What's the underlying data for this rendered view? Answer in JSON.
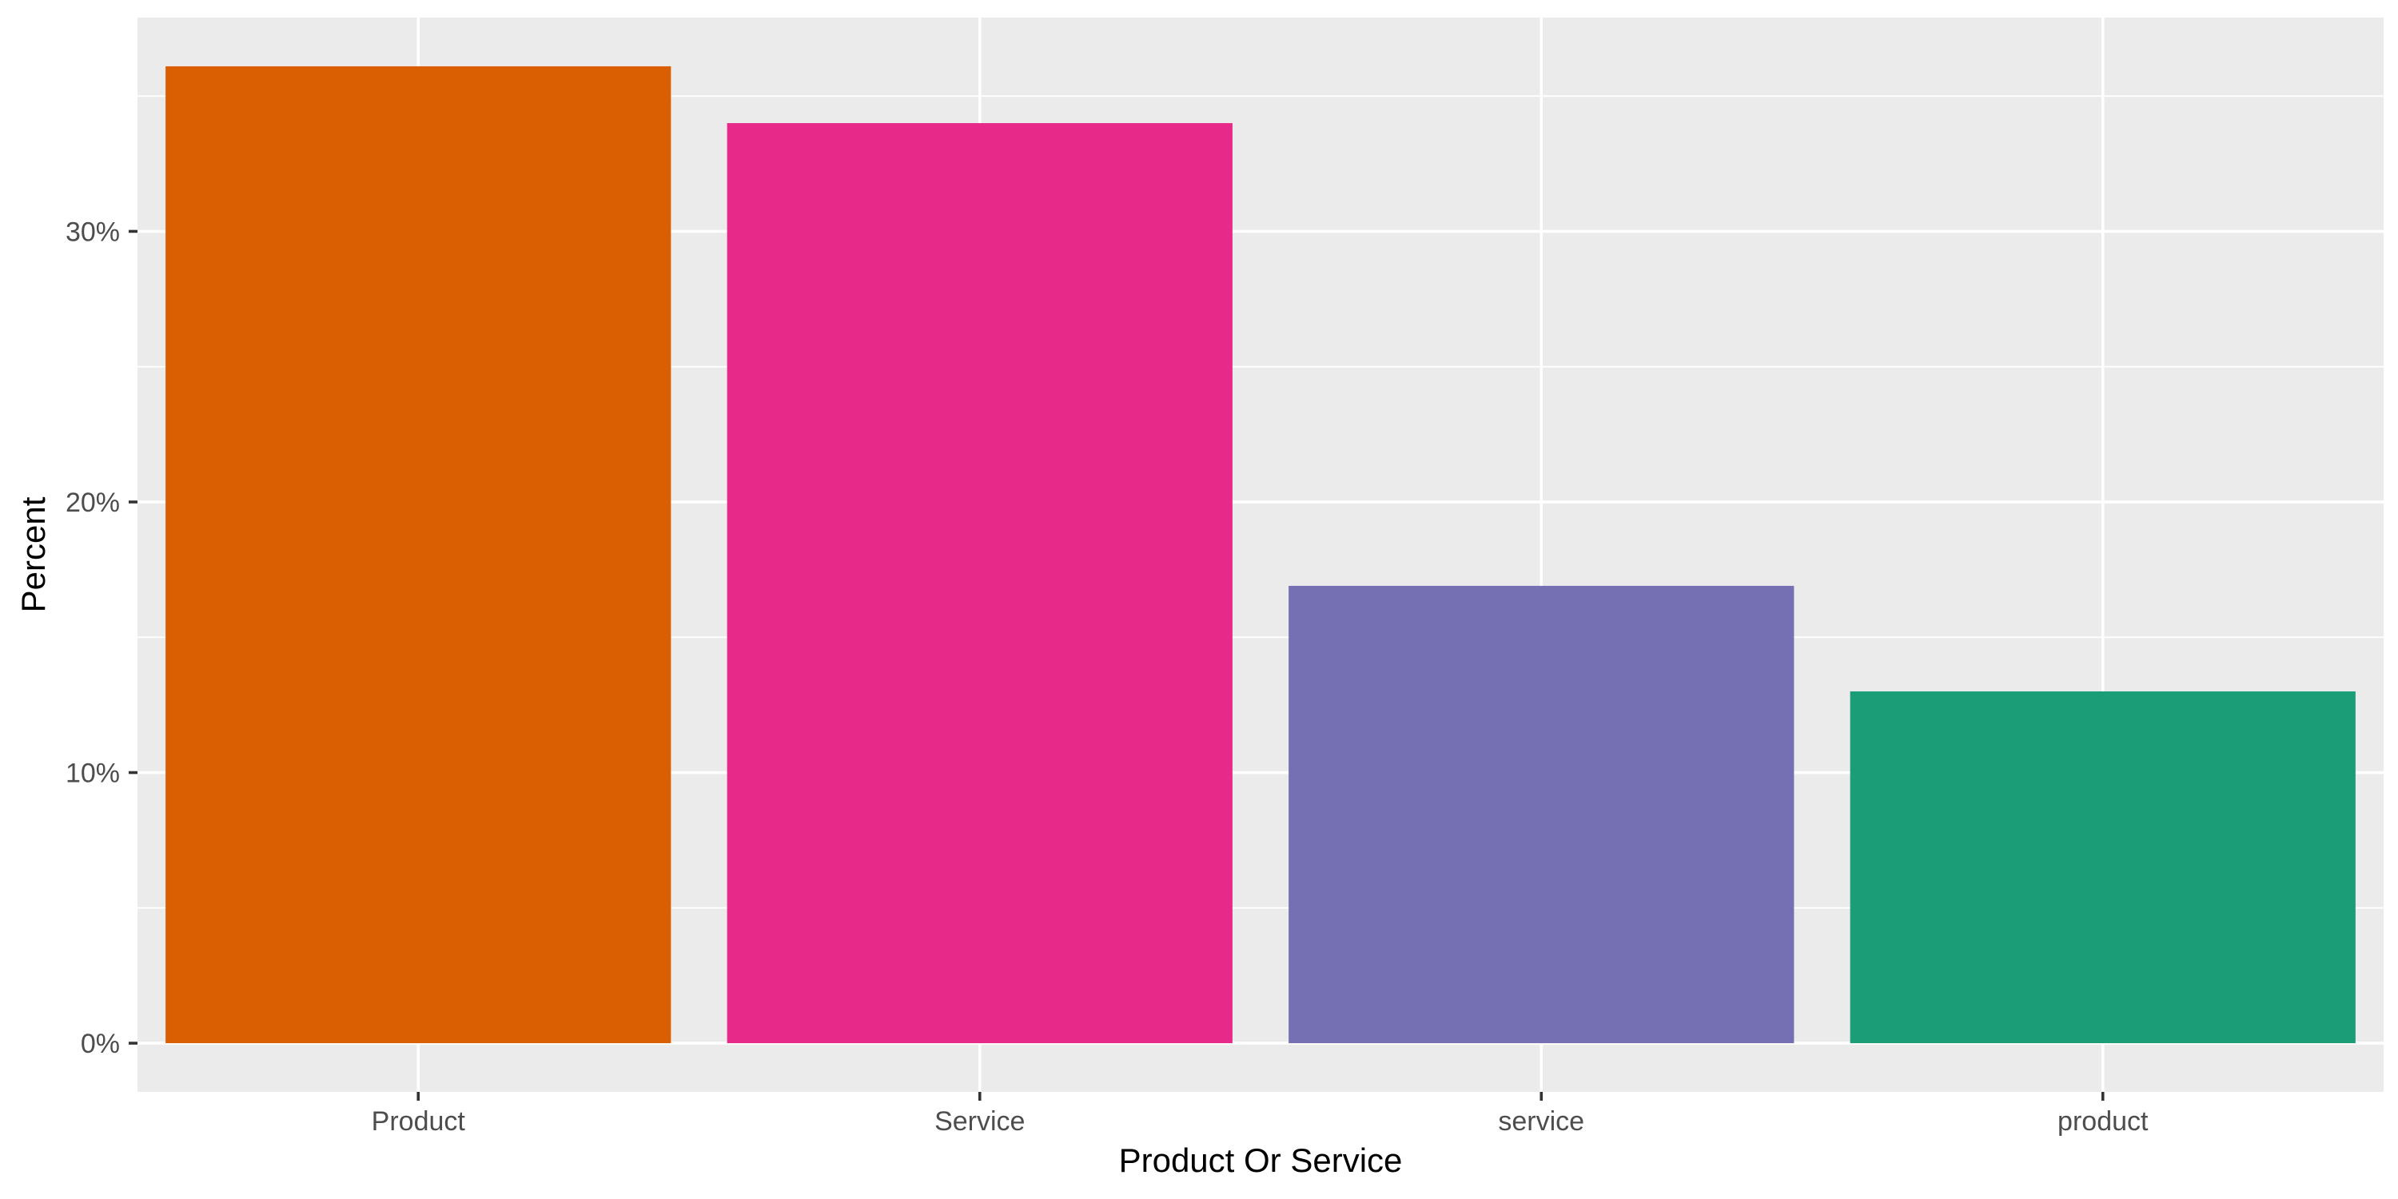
{
  "chart_data": {
    "type": "bar",
    "title": "",
    "xlabel": "Product Or Service",
    "ylabel": "Percent",
    "categories": [
      "Product",
      "Service",
      "service",
      "product"
    ],
    "values": [
      36.1,
      34.0,
      16.9,
      13.0
    ],
    "colors": [
      "#D95F02",
      "#E7298A",
      "#7570B3",
      "#1B9E77"
    ],
    "ylim": [
      -1.8,
      37.9
    ],
    "y_ticks": [
      0,
      10,
      20,
      30
    ],
    "y_tick_labels": [
      "0%",
      "10%",
      "20%",
      "30%"
    ],
    "grid": true,
    "panel_background": "#EBEBEB",
    "grid_color": "#FFFFFF",
    "legend": "none"
  }
}
